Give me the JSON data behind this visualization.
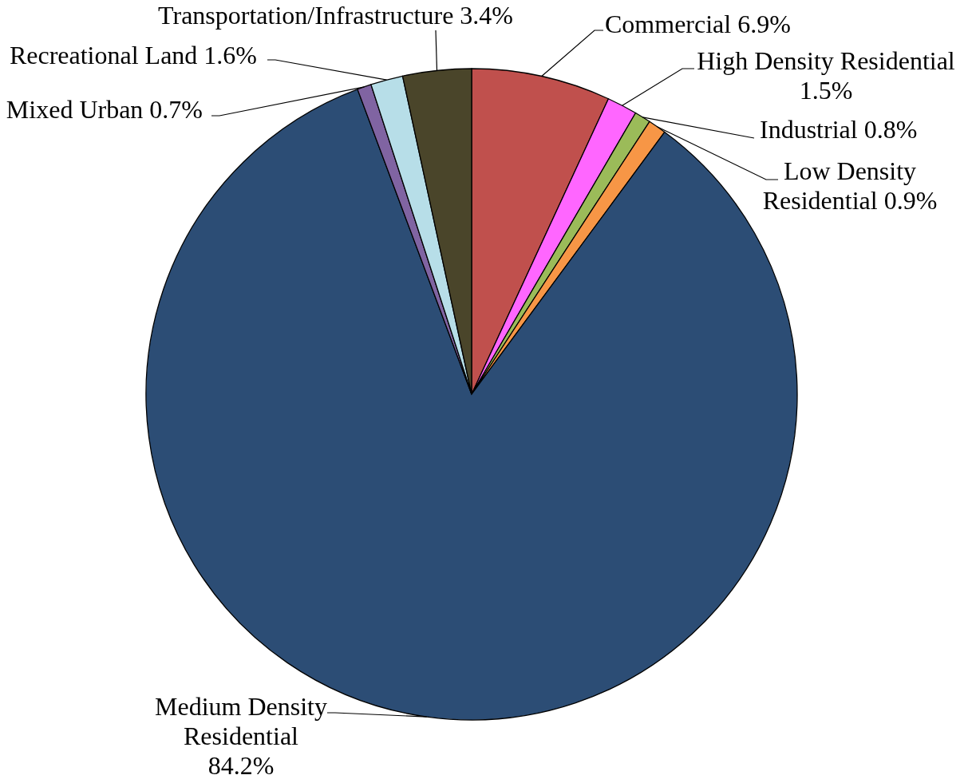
{
  "chart_data": {
    "type": "pie",
    "categories": [
      "Commercial",
      "High Density Residential",
      "Industrial",
      "Low Density Residential",
      "Medium Density Residential",
      "Mixed Urban",
      "Recreational Land",
      "Transportation/Infrastructure"
    ],
    "values": [
      6.9,
      1.5,
      0.8,
      0.9,
      84.2,
      0.7,
      1.6,
      3.4
    ],
    "colors": [
      "#c0504d",
      "#ff66ff",
      "#9bbb59",
      "#f79646",
      "#2c4d75",
      "#8064a2",
      "#b7dee8",
      "#4a452a"
    ],
    "value_labels": [
      "6.9%",
      "1.5%",
      "0.8%",
      "0.9%",
      "84.2%",
      "0.7%",
      "1.6%",
      "3.4%"
    ]
  }
}
